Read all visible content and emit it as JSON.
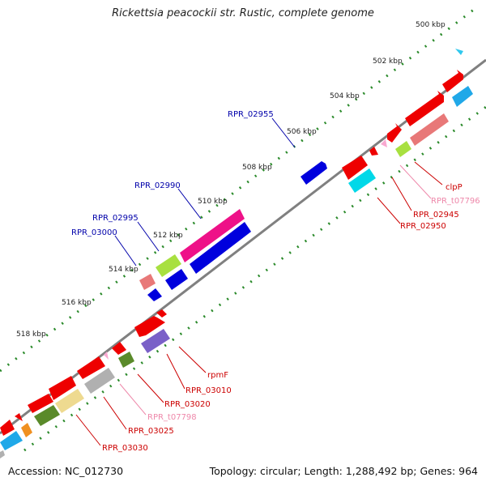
{
  "title": "Rickettsia peacockii str. Rustic, complete genome",
  "footer": {
    "accession": "Accession: NC_012730",
    "summary": "Topology: circular; Length: 1,288,492 bp; Genes: 964"
  },
  "ticks": [
    "500 kbp",
    "502 kbp",
    "504 kbp",
    "506 kbp",
    "508 kbp",
    "510 kbp",
    "512 kbp",
    "514 kbp",
    "516 kbp",
    "518 kbp"
  ],
  "labels": {
    "blue": [
      "RPR_02955",
      "RPR_02990",
      "RPR_02995",
      "RPR_03000"
    ],
    "red": [
      "clpP",
      "RPR_t07796",
      "RPR_02945",
      "RPR_02950",
      "rpmF",
      "RPR_03010",
      "RPR_03020",
      "RPR_t07798",
      "RPR_03025",
      "RPR_03030"
    ]
  },
  "colors": {
    "backbone": "#808080",
    "tick_dots": "#2a8a2a",
    "blue_label": "#0000aa",
    "red_label": "#cc0000",
    "trna_label": "#ee88aa",
    "cds_red": "#ee0000",
    "cds_blue": "#0000dd",
    "cds_magenta": "#ee1188",
    "cds_cyan": "#00d8e8",
    "cds_skyblue": "#20a8e8",
    "cds_salmon": "#e87878",
    "cds_lime": "#a8e040",
    "cds_olive": "#5a8a2a",
    "cds_khaki": "#eeda90",
    "cds_gray": "#b0b0b0",
    "cds_purple": "#7a60c8",
    "cds_orange": "#f09020",
    "trna_pink": "#f8a8d0"
  }
}
